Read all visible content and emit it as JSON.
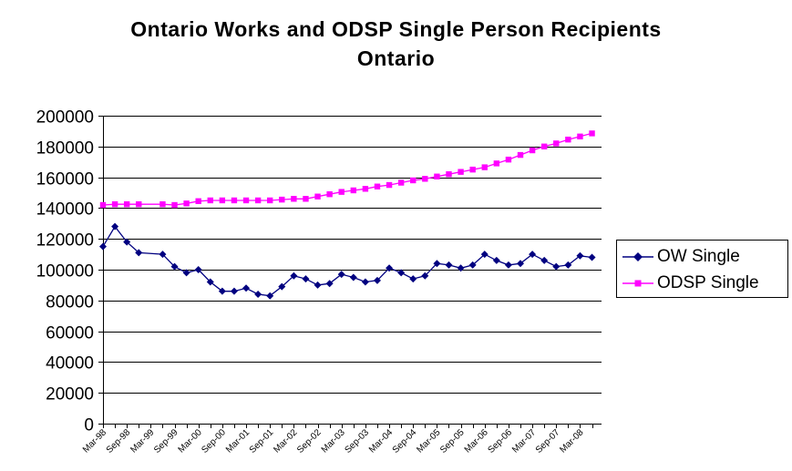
{
  "chart_data": {
    "type": "line",
    "title": "Ontario Works and ODSP Single Person Recipients",
    "subtitle": "Ontario",
    "xlabel": "",
    "ylabel": "",
    "ylim": [
      0,
      200000
    ],
    "yticks": [
      0,
      20000,
      40000,
      60000,
      80000,
      100000,
      120000,
      140000,
      160000,
      180000,
      200000
    ],
    "grid": true,
    "legend_position": "right",
    "x_tick_labels": [
      "Mar-98",
      "Sep-98",
      "Mar-99",
      "Sep-99",
      "Mar-00",
      "Sep-00",
      "Mar-01",
      "Sep-01",
      "Mar-02",
      "Sep-02",
      "Mar-03",
      "Sep-03",
      "Mar-04",
      "Sep-04",
      "Mar-05",
      "Sep-05",
      "Mar-06",
      "Sep-06",
      "Mar-07",
      "Sep-07",
      "Mar-08"
    ],
    "series": [
      {
        "name": "OW Single",
        "color": "#000080",
        "marker": "diamond",
        "points": [
          [
            0,
            115000
          ],
          [
            0.5,
            128000
          ],
          [
            1,
            118000
          ],
          [
            1.5,
            111000
          ],
          [
            2.5,
            110000
          ],
          [
            3,
            102000
          ],
          [
            3.5,
            98000
          ],
          [
            4,
            100000
          ],
          [
            4.5,
            92000
          ],
          [
            5,
            86000
          ],
          [
            5.5,
            86000
          ],
          [
            6,
            88000
          ],
          [
            6.5,
            84000
          ],
          [
            7,
            83000
          ],
          [
            7.5,
            89000
          ],
          [
            8,
            96000
          ],
          [
            8.5,
            94000
          ],
          [
            9,
            90000
          ],
          [
            9.5,
            91000
          ],
          [
            10,
            97000
          ],
          [
            10.5,
            95000
          ],
          [
            11,
            92000
          ],
          [
            11.5,
            93000
          ],
          [
            12,
            101000
          ],
          [
            12.5,
            98000
          ],
          [
            13,
            94000
          ],
          [
            13.5,
            96000
          ],
          [
            14,
            104000
          ],
          [
            14.5,
            103000
          ],
          [
            15,
            101000
          ],
          [
            15.5,
            103000
          ],
          [
            16,
            110000
          ],
          [
            16.5,
            106000
          ],
          [
            17,
            103000
          ],
          [
            17.5,
            104000
          ],
          [
            18,
            110000
          ],
          [
            18.5,
            106000
          ],
          [
            19,
            102000
          ],
          [
            19.5,
            103000
          ],
          [
            20,
            109000
          ],
          [
            20.5,
            108000
          ]
        ]
      },
      {
        "name": "ODSP Single",
        "color": "#FF00FF",
        "marker": "square",
        "points": [
          [
            0,
            142000
          ],
          [
            0.5,
            142500
          ],
          [
            1,
            142500
          ],
          [
            1.5,
            142500
          ],
          [
            2.5,
            142500
          ],
          [
            3,
            142000
          ],
          [
            3.5,
            143000
          ],
          [
            4,
            144500
          ],
          [
            4.5,
            145000
          ],
          [
            5,
            145000
          ],
          [
            5.5,
            145000
          ],
          [
            6,
            145000
          ],
          [
            6.5,
            145000
          ],
          [
            7,
            145000
          ],
          [
            7.5,
            145500
          ],
          [
            8,
            146000
          ],
          [
            8.5,
            146000
          ],
          [
            9,
            147500
          ],
          [
            9.5,
            149000
          ],
          [
            10,
            150500
          ],
          [
            10.5,
            151500
          ],
          [
            11,
            152500
          ],
          [
            11.5,
            154000
          ],
          [
            12,
            155000
          ],
          [
            12.5,
            156500
          ],
          [
            13,
            158000
          ],
          [
            13.5,
            159000
          ],
          [
            14,
            160500
          ],
          [
            14.5,
            162000
          ],
          [
            15,
            163500
          ],
          [
            15.5,
            165000
          ],
          [
            16,
            166500
          ],
          [
            16.5,
            169000
          ],
          [
            17,
            171500
          ],
          [
            17.5,
            174500
          ],
          [
            18,
            177500
          ],
          [
            18.5,
            180000
          ],
          [
            19,
            182000
          ],
          [
            19.5,
            184500
          ],
          [
            20,
            186500
          ],
          [
            20.5,
            188500
          ]
        ]
      }
    ]
  }
}
